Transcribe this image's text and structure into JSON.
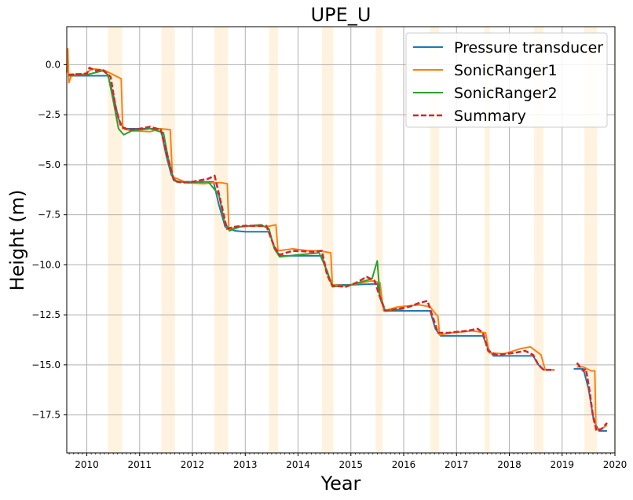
{
  "chart_data": {
    "type": "line",
    "title": "UPE_U",
    "xlabel": "Year",
    "ylabel": "Height (m)",
    "xlim": [
      2009.62,
      2020.0
    ],
    "ylim": [
      -19.4,
      1.9
    ],
    "xticks": [
      2010,
      2011,
      2012,
      2013,
      2014,
      2015,
      2016,
      2017,
      2018,
      2019,
      2020
    ],
    "xtick_labels": [
      "2010",
      "2011",
      "2012",
      "2013",
      "2014",
      "2015",
      "2016",
      "2017",
      "2018",
      "2019",
      "2020"
    ],
    "yticks": [
      0.0,
      -2.5,
      -5.0,
      -7.5,
      -10.0,
      -12.5,
      -15.0,
      -17.5
    ],
    "ytick_labels": [
      "0.0",
      "−2.5",
      "−5.0",
      "−7.5",
      "−10.0",
      "−12.5",
      "−15.0",
      "−17.5"
    ],
    "grid": true,
    "legend_position": "top-right",
    "summer_bands": [
      [
        2010.4,
        2010.67
      ],
      [
        2011.41,
        2011.67
      ],
      [
        2012.41,
        2012.67
      ],
      [
        2013.45,
        2013.62
      ],
      [
        2014.45,
        2014.67
      ],
      [
        2015.47,
        2015.6
      ],
      [
        2016.5,
        2016.67
      ],
      [
        2017.53,
        2017.63
      ],
      [
        2018.47,
        2018.65
      ],
      [
        2019.42,
        2019.66
      ],
      [
        2019.97,
        2020.0
      ]
    ],
    "series": [
      {
        "name": "Pressure transducer",
        "color": "#1f77b4",
        "style": "solid",
        "segments": [
          [
            [
              2009.65,
              -0.55
            ],
            [
              2010.0,
              -0.55
            ],
            [
              2010.4,
              -0.55
            ],
            [
              2010.5,
              -1.5
            ],
            [
              2010.6,
              -2.7
            ],
            [
              2010.7,
              -3.2
            ],
            [
              2011.0,
              -3.2
            ],
            [
              2011.4,
              -3.2
            ],
            [
              2011.5,
              -4.5
            ],
            [
              2011.6,
              -5.5
            ],
            [
              2011.7,
              -5.85
            ],
            [
              2012.0,
              -5.85
            ],
            [
              2012.4,
              -5.85
            ],
            [
              2012.5,
              -7.0
            ],
            [
              2012.62,
              -8.1
            ],
            [
              2012.8,
              -8.3
            ],
            [
              2013.0,
              -8.35
            ],
            [
              2013.45,
              -8.35
            ],
            [
              2013.55,
              -9.1
            ],
            [
              2013.65,
              -9.55
            ],
            [
              2014.0,
              -9.55
            ],
            [
              2014.45,
              -9.55
            ],
            [
              2014.55,
              -10.4
            ],
            [
              2014.65,
              -11.0
            ],
            [
              2015.0,
              -11.0
            ],
            [
              2015.5,
              -10.95
            ],
            [
              2015.57,
              -11.8
            ],
            [
              2015.65,
              -12.3
            ],
            [
              2016.0,
              -12.3
            ],
            [
              2016.5,
              -12.3
            ],
            [
              2016.6,
              -13.2
            ],
            [
              2016.7,
              -13.55
            ],
            [
              2017.0,
              -13.55
            ],
            [
              2017.5,
              -13.55
            ],
            [
              2017.6,
              -14.2
            ],
            [
              2017.7,
              -14.55
            ],
            [
              2018.0,
              -14.55
            ],
            [
              2018.45,
              -14.55
            ],
            [
              2018.55,
              -15.0
            ],
            [
              2018.65,
              -15.25
            ],
            [
              2018.85,
              -15.25
            ]
          ],
          [
            [
              2019.22,
              -15.2
            ],
            [
              2019.4,
              -15.2
            ],
            [
              2019.5,
              -16.2
            ],
            [
              2019.6,
              -17.8
            ],
            [
              2019.7,
              -18.3
            ],
            [
              2019.85,
              -18.3
            ]
          ]
        ]
      },
      {
        "name": "SonicRanger1",
        "color": "#ff7f0e",
        "style": "solid",
        "segments": [
          [
            [
              2009.62,
              -0.4
            ],
            [
              2009.64,
              0.8
            ],
            [
              2009.66,
              -0.9
            ],
            [
              2009.7,
              -0.6
            ],
            [
              2009.8,
              -0.45
            ],
            [
              2009.9,
              -0.5
            ],
            [
              2010.0,
              -0.4
            ],
            [
              2010.1,
              -0.2
            ],
            [
              2010.25,
              -0.25
            ],
            [
              2010.35,
              -0.3
            ],
            [
              2010.5,
              -0.5
            ],
            [
              2010.65,
              -0.7
            ],
            [
              2010.68,
              -3.2
            ],
            [
              2010.85,
              -3.3
            ],
            [
              2011.2,
              -3.35
            ],
            [
              2011.4,
              -3.2
            ],
            [
              2011.58,
              -3.25
            ],
            [
              2011.62,
              -5.6
            ],
            [
              2011.9,
              -5.9
            ],
            [
              2012.2,
              -5.95
            ],
            [
              2012.4,
              -5.9
            ],
            [
              2012.55,
              -5.9
            ],
            [
              2012.66,
              -5.95
            ],
            [
              2012.69,
              -8.2
            ],
            [
              2012.9,
              -8.1
            ],
            [
              2013.2,
              -8.05
            ],
            [
              2013.4,
              -8.1
            ],
            [
              2013.58,
              -8.0
            ],
            [
              2013.62,
              -9.3
            ],
            [
              2013.9,
              -9.2
            ],
            [
              2014.2,
              -9.3
            ],
            [
              2014.4,
              -9.3
            ],
            [
              2014.62,
              -9.4
            ],
            [
              2014.65,
              -11.0
            ],
            [
              2014.9,
              -11.05
            ],
            [
              2015.2,
              -10.9
            ],
            [
              2015.4,
              -10.8
            ],
            [
              2015.55,
              -10.9
            ],
            [
              2015.62,
              -12.3
            ],
            [
              2015.9,
              -12.1
            ],
            [
              2016.3,
              -12.0
            ],
            [
              2016.5,
              -12.1
            ],
            [
              2016.65,
              -12.6
            ],
            [
              2016.68,
              -13.5
            ],
            [
              2016.9,
              -13.4
            ],
            [
              2017.3,
              -13.3
            ],
            [
              2017.55,
              -13.4
            ],
            [
              2017.62,
              -14.4
            ],
            [
              2017.9,
              -14.45
            ],
            [
              2018.2,
              -14.2
            ],
            [
              2018.4,
              -14.1
            ],
            [
              2018.6,
              -14.5
            ],
            [
              2018.68,
              -15.25
            ],
            [
              2018.85,
              -15.25
            ]
          ],
          [
            [
              2019.28,
              -15.1
            ],
            [
              2019.4,
              -15.1
            ],
            [
              2019.55,
              -15.3
            ],
            [
              2019.62,
              -15.3
            ],
            [
              2019.64,
              -18.2
            ],
            [
              2019.75,
              -18.2
            ],
            [
              2019.85,
              -18.0
            ]
          ]
        ]
      },
      {
        "name": "SonicRanger2",
        "color": "#2ca02c",
        "style": "solid",
        "segments": [
          [
            [
              2009.65,
              -0.55
            ],
            [
              2010.0,
              -0.5
            ],
            [
              2010.3,
              -0.3
            ],
            [
              2010.4,
              -0.5
            ],
            [
              2010.5,
              -1.8
            ],
            [
              2010.6,
              -3.2
            ],
            [
              2010.7,
              -3.5
            ],
            [
              2010.85,
              -3.3
            ],
            [
              2011.2,
              -3.2
            ],
            [
              2011.45,
              -3.4
            ],
            [
              2011.55,
              -4.8
            ],
            [
              2011.65,
              -5.8
            ],
            [
              2011.9,
              -5.9
            ],
            [
              2012.3,
              -5.85
            ],
            [
              2012.5,
              -6.5
            ],
            [
              2012.6,
              -7.8
            ],
            [
              2012.7,
              -8.3
            ],
            [
              2012.9,
              -8.1
            ],
            [
              2013.3,
              -8.0
            ],
            [
              2013.45,
              -8.2
            ],
            [
              2013.55,
              -9.2
            ],
            [
              2013.65,
              -9.6
            ],
            [
              2014.0,
              -9.5
            ],
            [
              2014.4,
              -9.4
            ],
            [
              2014.55,
              -10.3
            ],
            [
              2014.65,
              -11.1
            ],
            [
              2015.0,
              -11.0
            ],
            [
              2015.4,
              -10.7
            ],
            [
              2015.5,
              -9.8
            ],
            [
              2015.55,
              -11.6
            ],
            [
              2015.65,
              -12.3
            ],
            [
              2016.0,
              -12.2
            ]
          ]
        ]
      },
      {
        "name": "Summary",
        "color": "#d62728",
        "style": "dashed",
        "segments": [
          [
            [
              2009.65,
              -0.5
            ],
            [
              2010.0,
              -0.45
            ],
            [
              2010.05,
              -0.15
            ],
            [
              2010.15,
              -0.3
            ],
            [
              2010.3,
              -0.25
            ],
            [
              2010.45,
              -0.6
            ],
            [
              2010.55,
              -2.2
            ],
            [
              2010.65,
              -3.1
            ],
            [
              2010.8,
              -3.25
            ],
            [
              2011.0,
              -3.2
            ],
            [
              2011.2,
              -3.1
            ],
            [
              2011.4,
              -3.25
            ],
            [
              2011.55,
              -4.8
            ],
            [
              2011.65,
              -5.8
            ],
            [
              2011.8,
              -5.9
            ],
            [
              2012.0,
              -5.85
            ],
            [
              2012.3,
              -5.7
            ],
            [
              2012.42,
              -5.55
            ],
            [
              2012.55,
              -7.0
            ],
            [
              2012.65,
              -8.2
            ],
            [
              2012.8,
              -8.1
            ],
            [
              2013.0,
              -8.05
            ],
            [
              2013.4,
              -8.05
            ],
            [
              2013.55,
              -9.1
            ],
            [
              2013.65,
              -9.5
            ],
            [
              2013.9,
              -9.3
            ],
            [
              2014.3,
              -9.35
            ],
            [
              2014.45,
              -9.3
            ],
            [
              2014.55,
              -10.5
            ],
            [
              2014.65,
              -11.05
            ],
            [
              2014.9,
              -11.1
            ],
            [
              2015.1,
              -10.9
            ],
            [
              2015.3,
              -10.6
            ],
            [
              2015.45,
              -10.8
            ],
            [
              2015.55,
              -11.6
            ],
            [
              2015.65,
              -12.3
            ],
            [
              2015.9,
              -12.2
            ],
            [
              2016.1,
              -12.1
            ],
            [
              2016.3,
              -11.9
            ],
            [
              2016.45,
              -11.8
            ],
            [
              2016.55,
              -12.6
            ],
            [
              2016.65,
              -13.4
            ],
            [
              2016.85,
              -13.4
            ],
            [
              2017.2,
              -13.3
            ],
            [
              2017.4,
              -13.2
            ],
            [
              2017.5,
              -13.4
            ],
            [
              2017.6,
              -14.3
            ],
            [
              2017.75,
              -14.5
            ],
            [
              2018.1,
              -14.4
            ],
            [
              2018.3,
              -14.3
            ],
            [
              2018.45,
              -14.5
            ],
            [
              2018.55,
              -15.0
            ],
            [
              2018.65,
              -15.25
            ],
            [
              2018.85,
              -15.25
            ]
          ],
          [
            [
              2019.28,
              -14.9
            ],
            [
              2019.4,
              -15.3
            ],
            [
              2019.45,
              -15.2
            ],
            [
              2019.52,
              -16.3
            ],
            [
              2019.58,
              -17.5
            ],
            [
              2019.65,
              -18.3
            ],
            [
              2019.75,
              -18.2
            ],
            [
              2019.85,
              -17.9
            ]
          ]
        ]
      }
    ]
  }
}
